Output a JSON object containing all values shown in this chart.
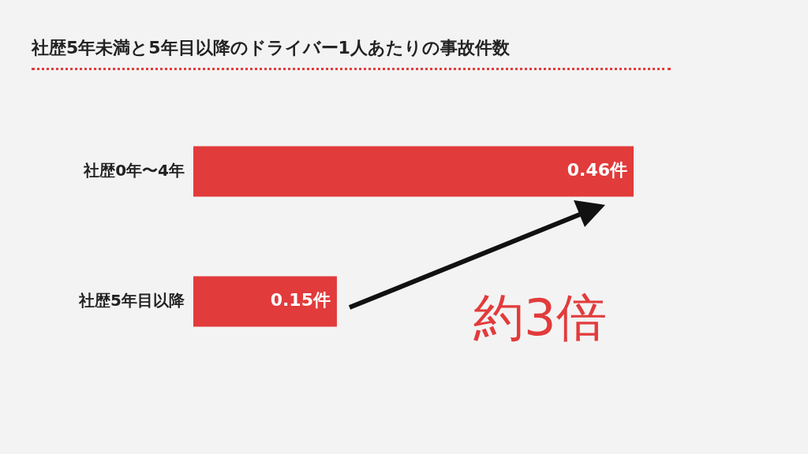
{
  "chart_data": {
    "type": "bar",
    "orientation": "horizontal",
    "title": "社歴5年未満と5年目以降のドライバー1人あたりの事故件数",
    "categories": [
      "社歴0年〜4年",
      "社歴5年目以降"
    ],
    "values": [
      0.46,
      0.15
    ],
    "value_labels": [
      "0.46件",
      "0.15件"
    ],
    "color": "#e23b3b",
    "annotations": [
      "約3倍"
    ]
  }
}
